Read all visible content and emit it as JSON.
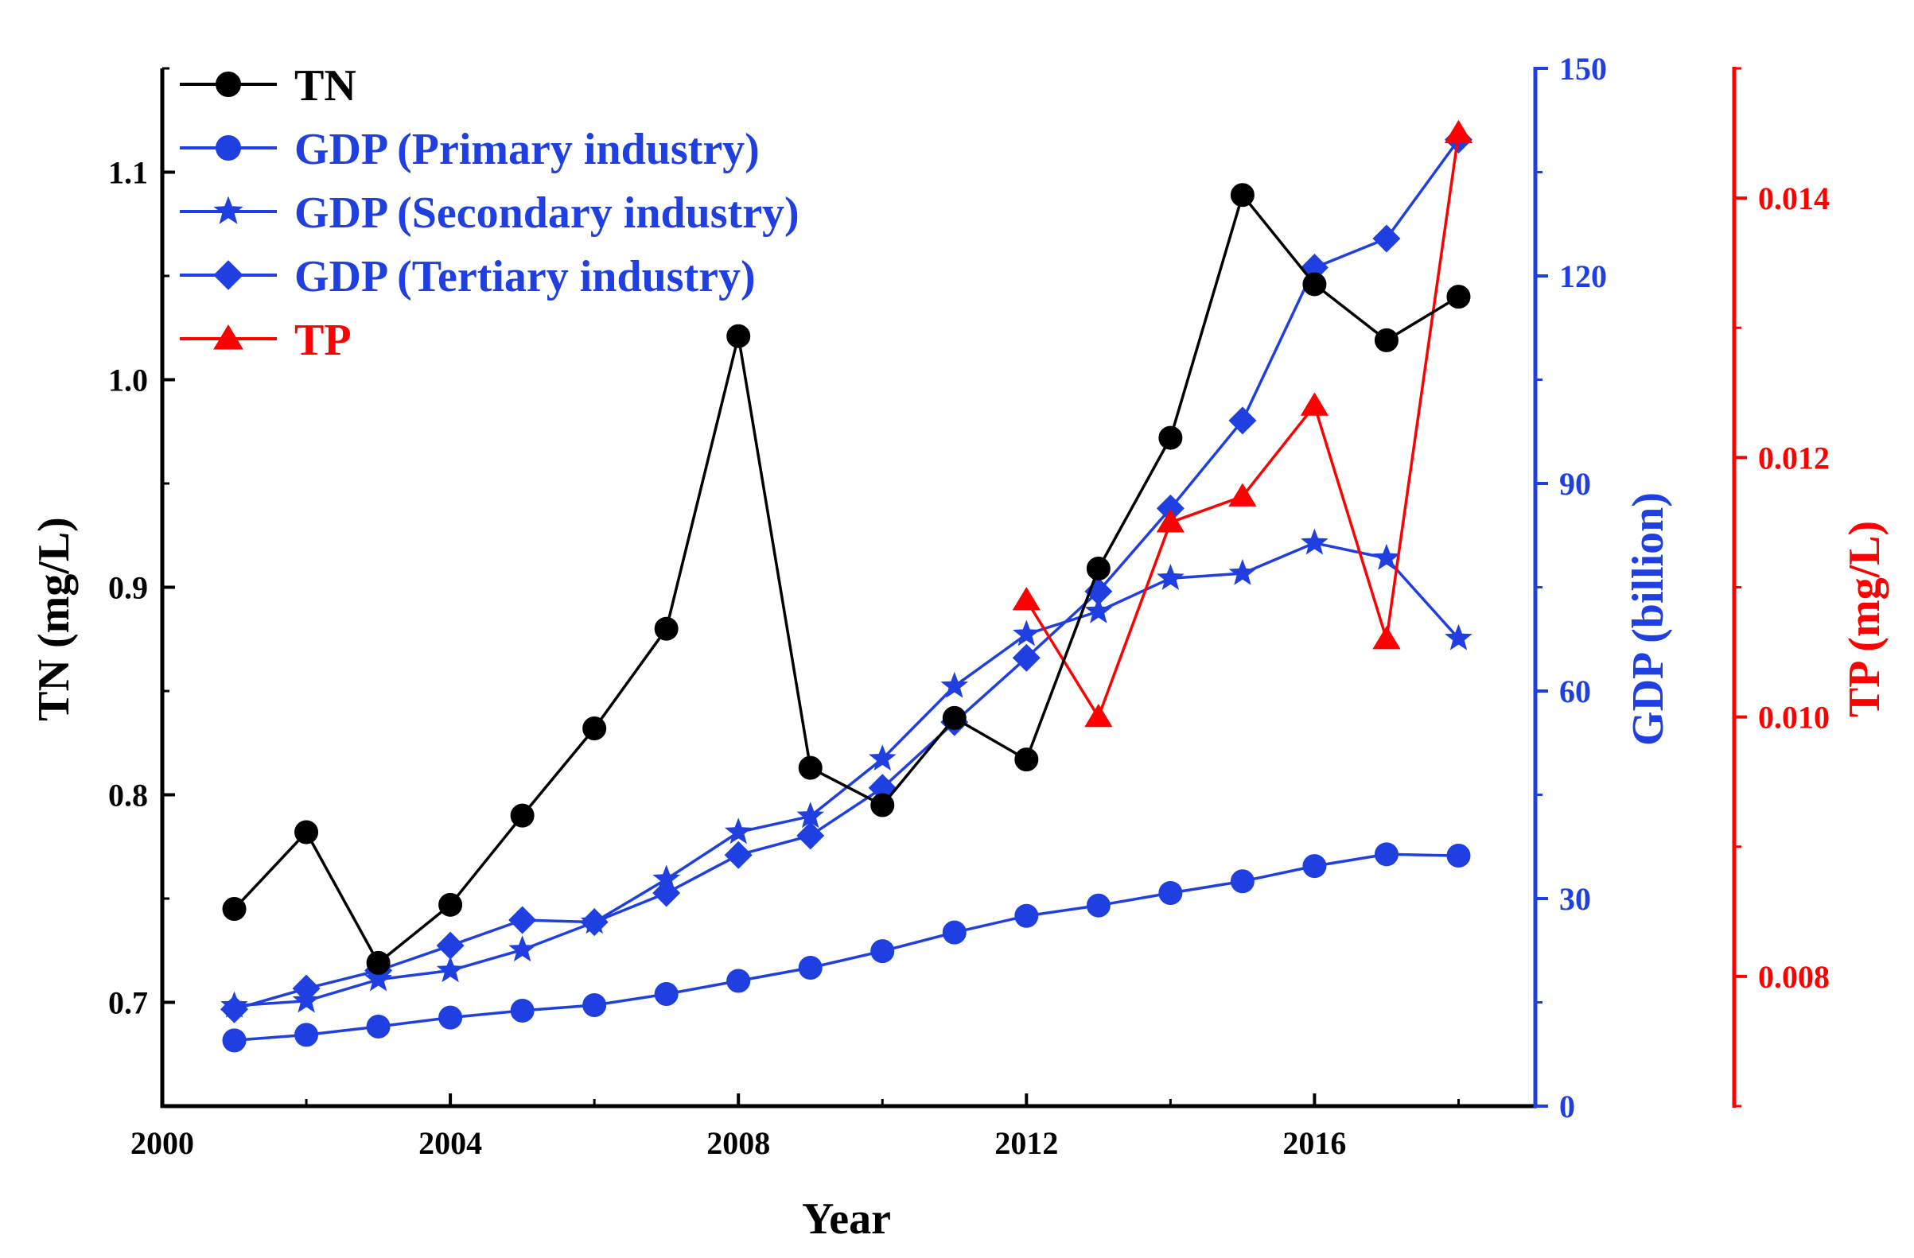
{
  "colors": {
    "tn": "#000000",
    "gdp": "#1f3fe0",
    "tp": "#ff0000"
  },
  "chart_data": {
    "type": "line",
    "x": [
      2001,
      2002,
      2003,
      2004,
      2005,
      2006,
      2007,
      2008,
      2009,
      2010,
      2011,
      2012,
      2013,
      2014,
      2015,
      2016,
      2017,
      2018
    ],
    "xlabel": "Year",
    "xlim": [
      2000,
      2019
    ],
    "xticks": [
      "2000",
      "2004",
      "2008",
      "2012",
      "2016"
    ],
    "axes": {
      "tn": {
        "label": "TN (mg/L)",
        "ylim": [
          0.65,
          1.15
        ],
        "ticks": [
          "0.7",
          "0.8",
          "0.9",
          "1.0",
          "1.1"
        ],
        "side": "left"
      },
      "gdp": {
        "label": "GDP (billion)",
        "ylim": [
          0,
          150
        ],
        "ticks": [
          "0",
          "30",
          "60",
          "90",
          "120",
          "150"
        ],
        "side": "right"
      },
      "tp": {
        "label": "TP (mg/L)",
        "ylim": [
          0.007,
          0.015
        ],
        "ticks": [
          "0.008",
          "0.010",
          "0.012",
          "0.014"
        ],
        "side": "right"
      }
    },
    "series": [
      {
        "name": "TN",
        "axis": "tn",
        "marker": "circle",
        "color": "#000000",
        "x": [
          2001,
          2002,
          2003,
          2004,
          2005,
          2006,
          2007,
          2008,
          2009,
          2010,
          2011,
          2012,
          2013,
          2014,
          2015,
          2016,
          2017,
          2018
        ],
        "values": [
          0.745,
          0.782,
          0.719,
          0.747,
          0.79,
          0.832,
          0.88,
          1.021,
          0.813,
          0.795,
          0.837,
          0.817,
          0.909,
          0.972,
          1.089,
          1.046,
          1.019,
          1.04
        ]
      },
      {
        "name": "GDP (Primary industry)",
        "axis": "gdp",
        "marker": "circle",
        "color": "#1f3fe0",
        "x": [
          2001,
          2002,
          2003,
          2004,
          2005,
          2006,
          2007,
          2008,
          2009,
          2010,
          2011,
          2012,
          2013,
          2014,
          2015,
          2016,
          2017,
          2018
        ],
        "values": [
          9.5,
          10.3,
          11.5,
          12.8,
          13.8,
          14.6,
          16.2,
          18.1,
          20.0,
          22.4,
          25.1,
          27.5,
          29.0,
          30.8,
          32.5,
          34.7,
          36.4,
          36.2
        ]
      },
      {
        "name": "GDP (Secondary industry)",
        "axis": "gdp",
        "marker": "star",
        "color": "#1f3fe0",
        "x": [
          2001,
          2002,
          2003,
          2004,
          2005,
          2006,
          2007,
          2008,
          2009,
          2010,
          2011,
          2012,
          2013,
          2014,
          2015,
          2016,
          2017,
          2018
        ],
        "values": [
          14.5,
          15.2,
          18.3,
          19.6,
          22.6,
          26.6,
          32.8,
          39.6,
          41.9,
          50.2,
          60.7,
          68.2,
          71.5,
          76.3,
          77.0,
          81.4,
          79.2,
          67.6
        ]
      },
      {
        "name": "GDP (Tertiary industry)",
        "axis": "gdp",
        "marker": "diamond",
        "color": "#1f3fe0",
        "x": [
          2001,
          2002,
          2003,
          2004,
          2005,
          2006,
          2007,
          2008,
          2009,
          2010,
          2011,
          2012,
          2013,
          2014,
          2015,
          2016,
          2017,
          2018
        ],
        "values": [
          14.0,
          17.0,
          19.6,
          23.2,
          26.9,
          26.6,
          30.8,
          36.3,
          39.1,
          46.0,
          55.5,
          64.8,
          74.4,
          86.4,
          99.1,
          121.2,
          125.4,
          139.7
        ]
      },
      {
        "name": "TP",
        "axis": "tp",
        "marker": "triangle",
        "color": "#ff0000",
        "x": [
          2012,
          2013,
          2014,
          2015,
          2016,
          2017,
          2018
        ],
        "values": [
          0.0109,
          0.01,
          0.0115,
          0.0117,
          0.0124,
          0.0106,
          0.0145
        ]
      }
    ],
    "legend": {
      "placement": "top-left",
      "entries": [
        "TN",
        "GDP (Primary industry)",
        "GDP (Secondary industry)",
        "GDP (Tertiary industry)",
        "TP"
      ]
    },
    "grid": false
  }
}
